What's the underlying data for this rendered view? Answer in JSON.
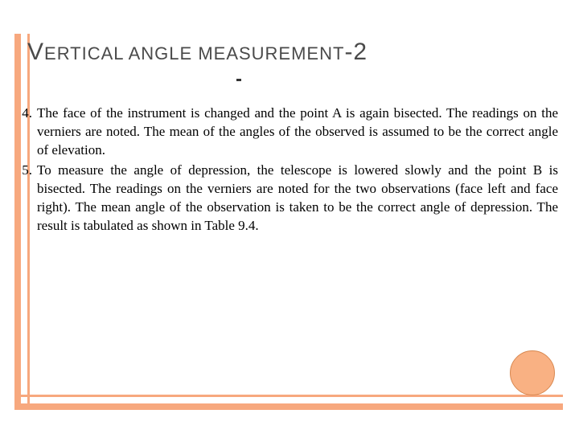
{
  "colors": {
    "accent": "#f7a87e",
    "circle_fill": "#f9b183",
    "circle_border": "#d88850",
    "title_color": "#4a4a4a",
    "text_color": "#000000",
    "background": "#ffffff"
  },
  "title": {
    "part1_cap": "V",
    "part1_rest": "ERTICAL",
    "part2_rest": " ANGLE MEASUREMENT",
    "dash": "-2"
  },
  "items": [
    {
      "number": "4.",
      "text": "The face of the instrument is changed and the point A is again bisected. The readings on the verniers are noted. The mean of the angles of the observed is assumed to be the correct angle of elevation."
    },
    {
      "number": "5.",
      "text": "To measure the angle of depression, the telescope is lowered slowly and the point B is bisected. The readings on the verniers are noted for the two observations (face left and face right). The mean angle of the observation is taken to be the correct angle of depression. The result is tabulated as shown in Table 9.4."
    }
  ]
}
